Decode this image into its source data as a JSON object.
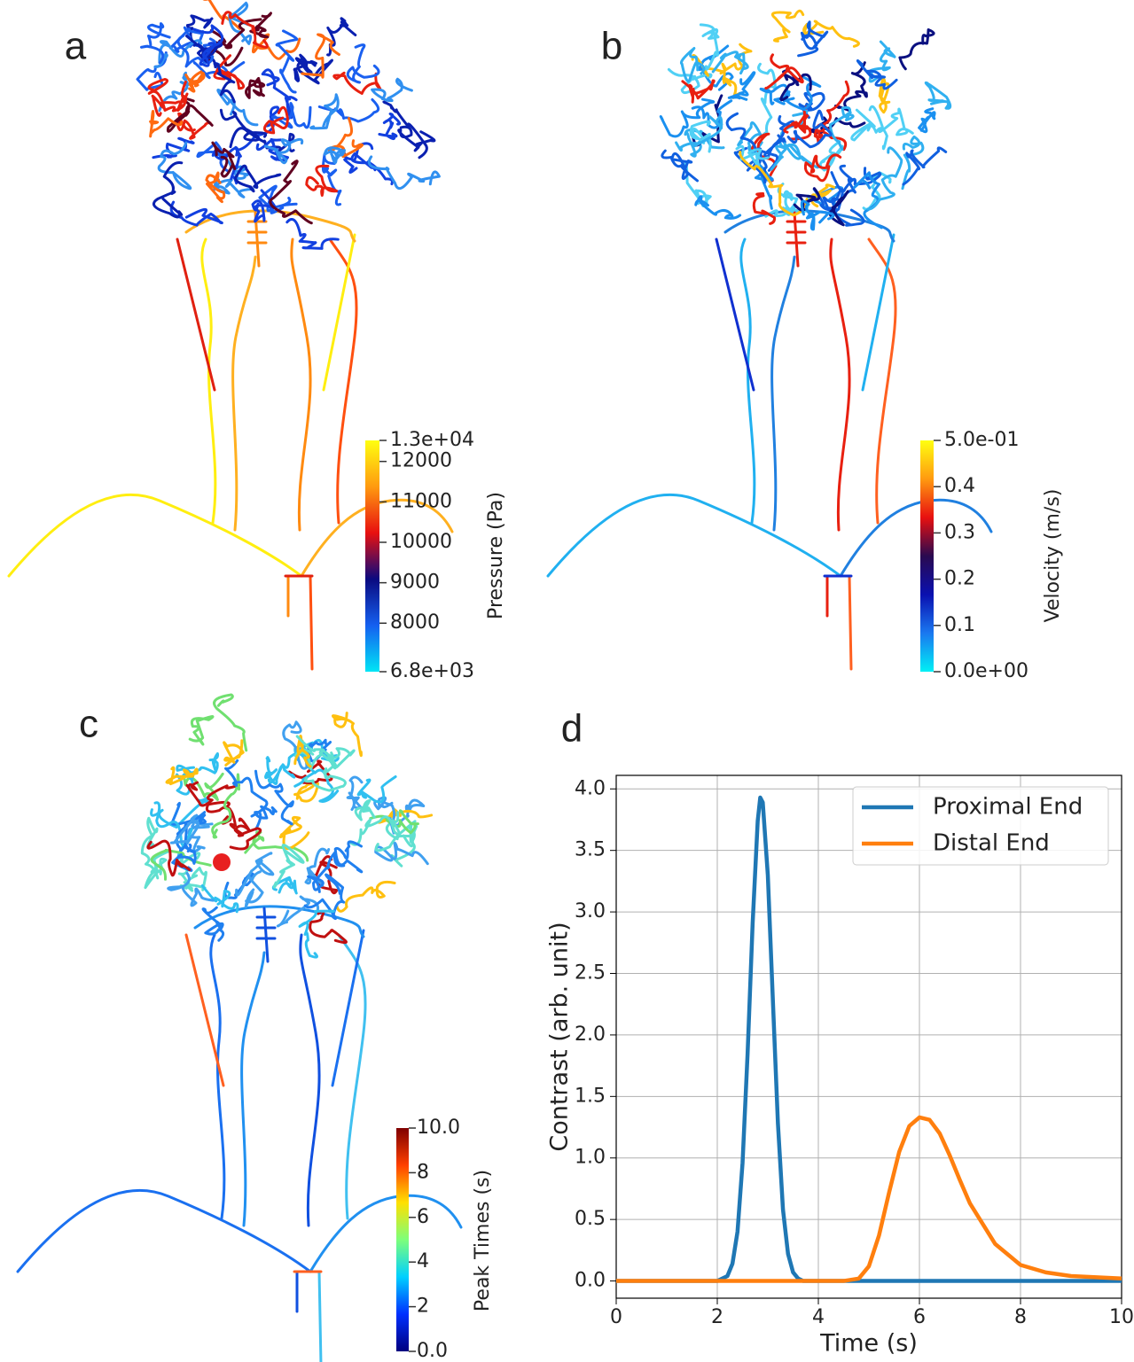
{
  "panels": [
    {
      "label": "a",
      "colorbar": {
        "title": "Pressure (Pa)",
        "lim": [
          6800,
          12520
        ],
        "colors": [
          "#00e5f5",
          "#1560f0",
          "#0a0a80",
          "#e81010",
          "#ff9a10",
          "#ffff10"
        ],
        "ticks": [
          {
            "value": 12520,
            "label": "1.3e+04"
          },
          12000,
          11000,
          10000,
          9000,
          8000,
          {
            "value": 6800,
            "label": "6.8e+03"
          }
        ]
      }
    },
    {
      "label": "b",
      "colorbar": {
        "title": "Velocity (m/s)",
        "lim": [
          0,
          0.5
        ],
        "colors": [
          "#00f0f5",
          "#1a78f0",
          "#0a10b0",
          "#2a0a50",
          "#e81010",
          "#ff9a10",
          "#ffff10"
        ],
        "ticks": [
          {
            "value": 0.5,
            "label": "5.0e-01"
          },
          0.4,
          0.3,
          0.2,
          0.1,
          {
            "value": 0,
            "label": "0.0e+00"
          }
        ]
      }
    },
    {
      "label": "c",
      "colorbar": {
        "title": "Peak Times (s)",
        "lim": [
          0,
          10
        ],
        "colors": [
          "#00007f",
          "#0030ff",
          "#00d0ff",
          "#7dff7a",
          "#ffe000",
          "#ff4000",
          "#7f0000"
        ],
        "ticks": [
          {
            "value": 10,
            "label": "10.0"
          },
          8,
          6,
          4,
          2,
          {
            "value": 0,
            "label": "0.0"
          }
        ]
      }
    }
  ],
  "chart_data": {
    "type": "line",
    "label": "d",
    "x_label": "Time (s)",
    "y_label": "Contrast (arb. unit)",
    "x": [
      0,
      1,
      2,
      2.2,
      2.3,
      2.4,
      2.5,
      2.6,
      2.7,
      2.8,
      2.85,
      2.9,
      3.0,
      3.1,
      3.2,
      3.3,
      3.4,
      3.5,
      3.6,
      3.7,
      3.8,
      4,
      4.5,
      4.8,
      5,
      5.2,
      5.4,
      5.6,
      5.8,
      6,
      6.2,
      6.4,
      6.6,
      6.8,
      7,
      7.5,
      8,
      8.5,
      9,
      9.5,
      10
    ],
    "series": [
      {
        "name": "Proximal End",
        "color": "#1f77b4",
        "values": [
          0,
          0,
          0,
          0.04,
          0.14,
          0.4,
          0.96,
          1.85,
          2.91,
          3.74,
          3.93,
          3.89,
          3.3,
          2.28,
          1.28,
          0.58,
          0.22,
          0.07,
          0.02,
          0,
          0,
          0,
          0,
          0,
          0,
          0,
          0,
          0,
          0,
          0,
          0,
          0,
          0,
          0,
          0,
          0,
          0,
          0,
          0,
          0,
          0
        ]
      },
      {
        "name": "Distal End",
        "color": "#ff7f0e",
        "values": [
          0,
          0,
          0,
          0,
          0,
          0,
          0,
          0,
          0,
          0,
          0,
          0,
          0,
          0,
          0,
          0,
          0,
          0,
          0,
          0,
          0,
          0,
          0,
          0.02,
          0.12,
          0.37,
          0.72,
          1.05,
          1.26,
          1.33,
          1.31,
          1.2,
          1.02,
          0.82,
          0.63,
          0.3,
          0.13,
          0.07,
          0.04,
          0.03,
          0.02
        ]
      }
    ],
    "xlim": [
      0,
      10
    ],
    "ylim": [
      -0.14,
      4.11
    ],
    "xticks": [
      0,
      2,
      4,
      6,
      8,
      10
    ],
    "yticks": [
      {
        "value": 0,
        "label": "0.0"
      },
      0.5,
      {
        "value": 1,
        "label": "1.0"
      },
      1.5,
      {
        "value": 2,
        "label": "2.0"
      },
      2.5,
      {
        "value": 3,
        "label": "3.0"
      },
      3.5,
      {
        "value": 4,
        "label": "4.0"
      }
    ],
    "grid": true,
    "legend": "upper right"
  }
}
